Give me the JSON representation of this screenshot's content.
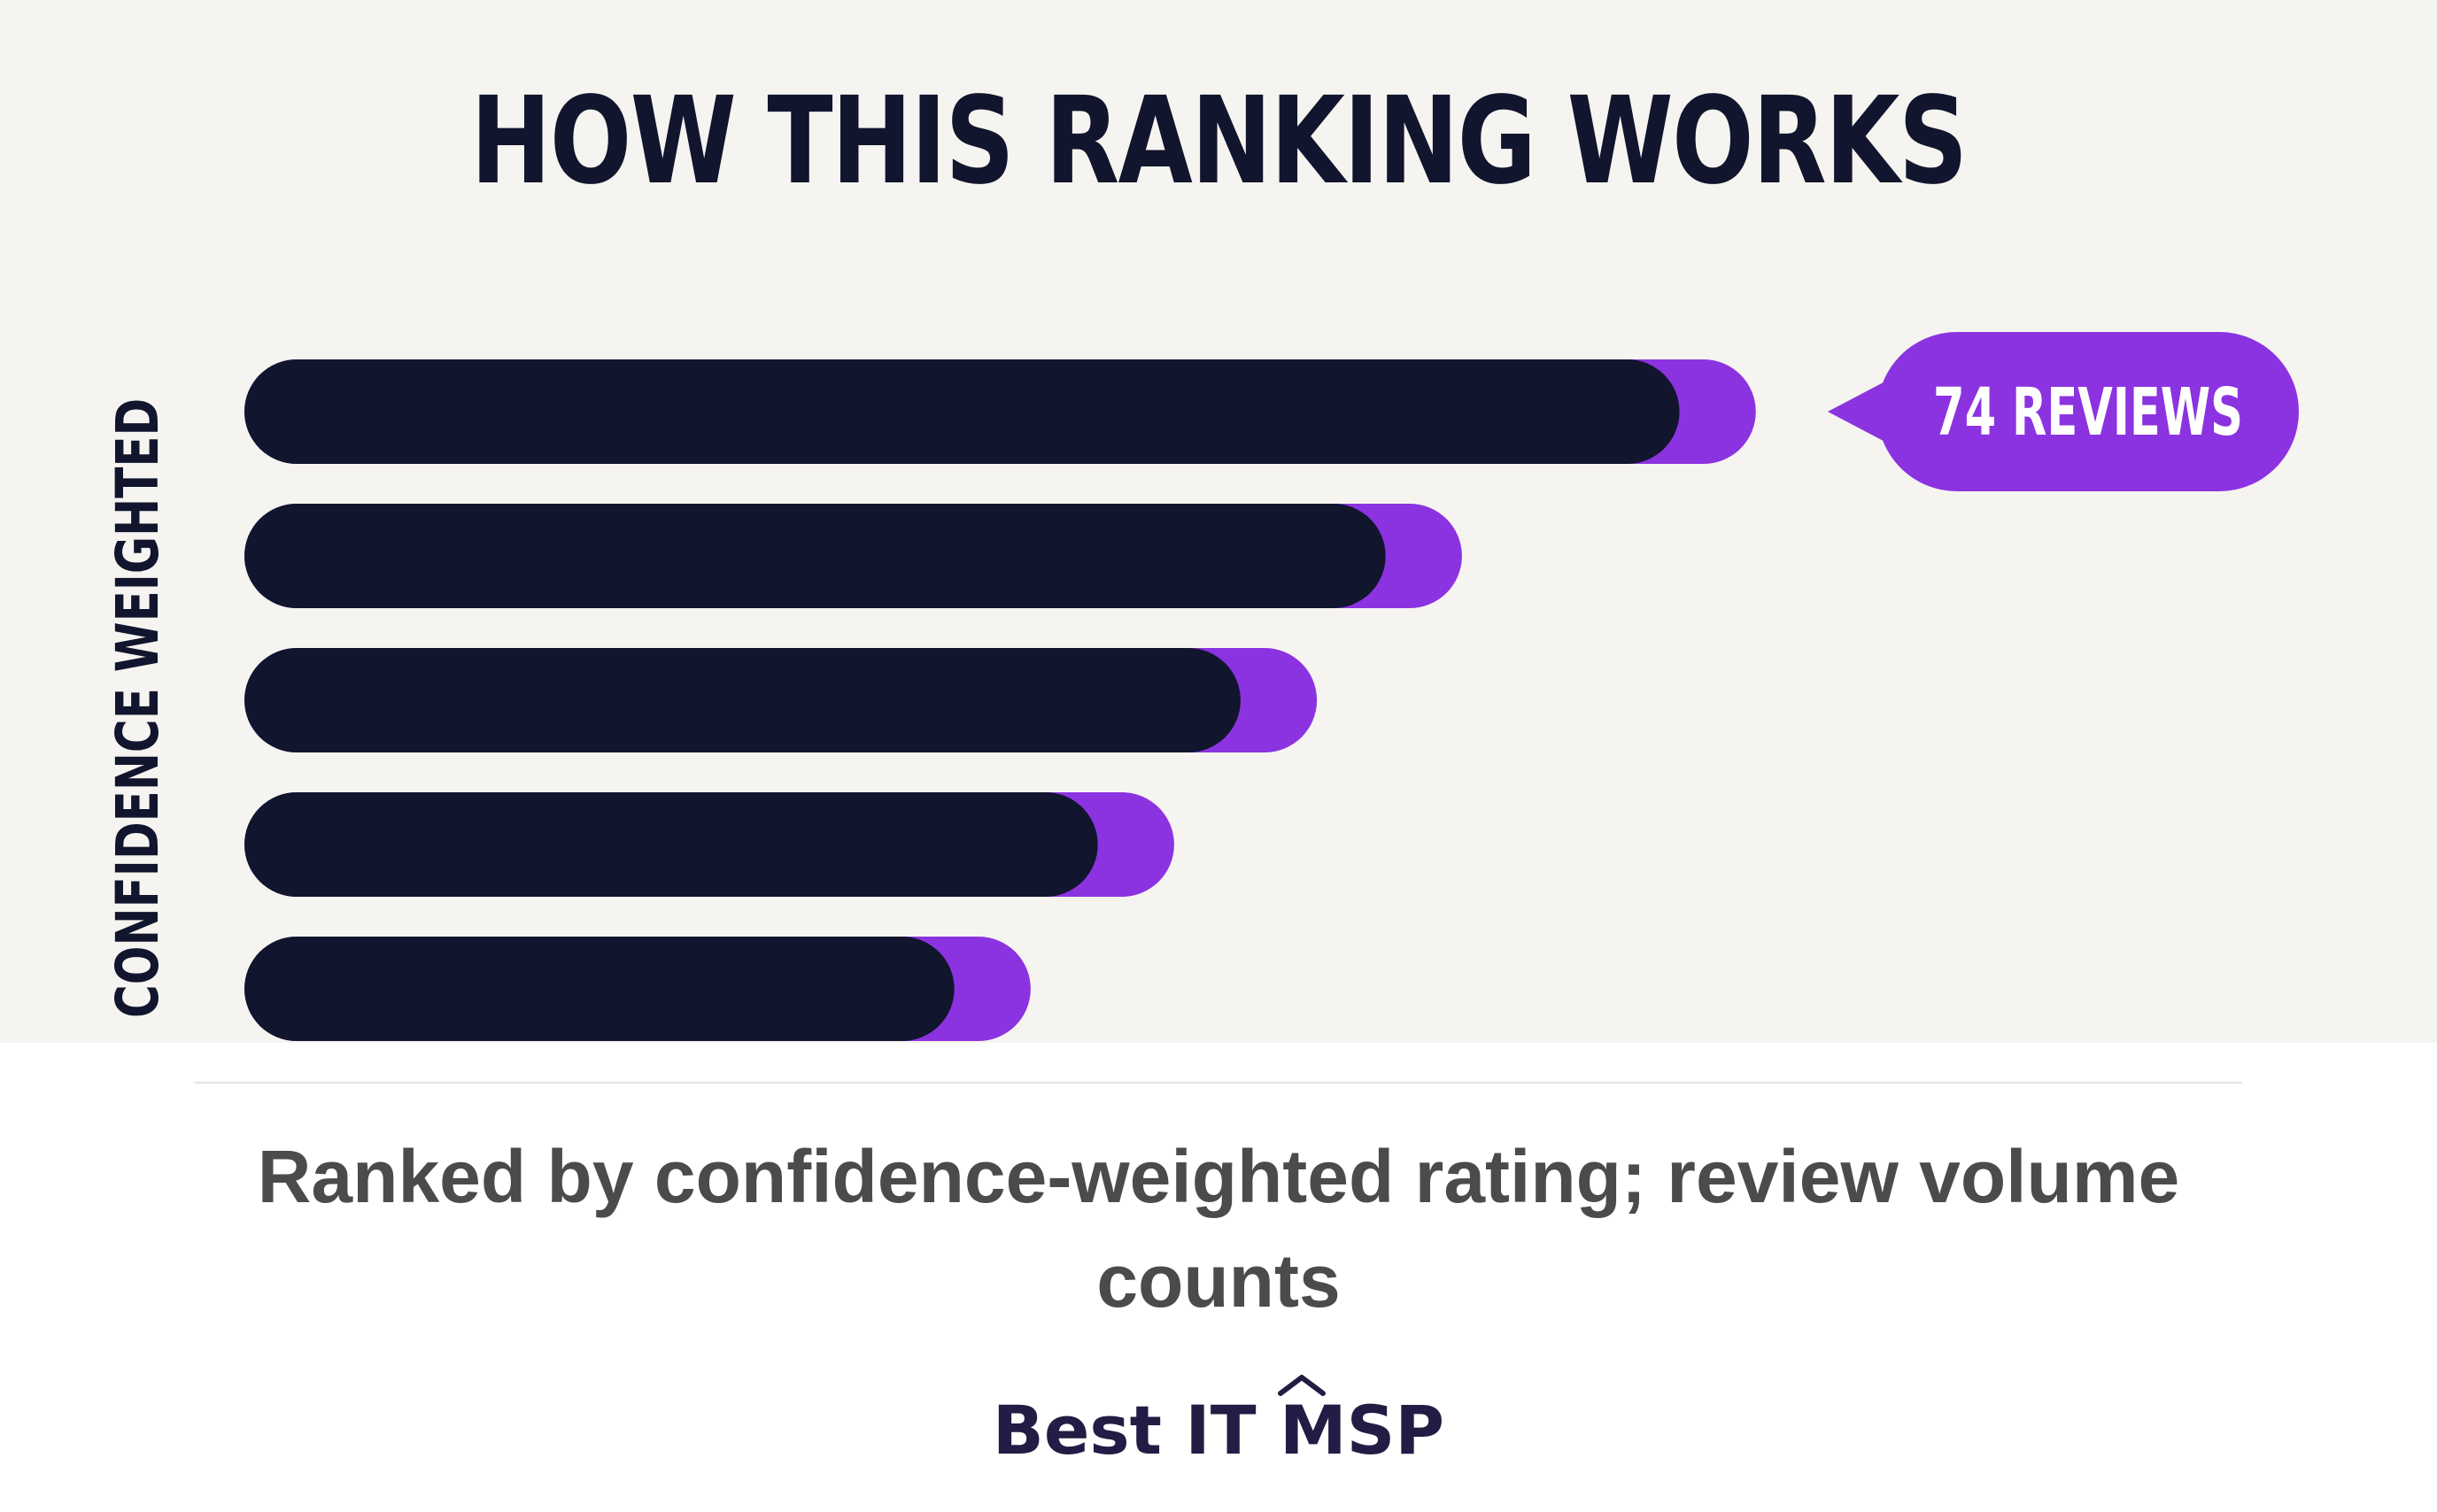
{
  "title": "HOW THIS RANKING WORKS",
  "colors": {
    "background": "#f6f4f0",
    "bar_main": "#11152d",
    "bar_accent": "#8b33e0",
    "caption": "#4b4b4b",
    "brand": "#241c44"
  },
  "chart_data": {
    "type": "bar",
    "orientation": "horizontal",
    "ylabel": "CONFIDENCE WEIGHTED",
    "xlabel": "",
    "bars": [
      {
        "main": 1880,
        "total": 1980
      },
      {
        "main": 1495,
        "total": 1595
      },
      {
        "main": 1305,
        "total": 1405
      },
      {
        "main": 1118,
        "total": 1218
      },
      {
        "main": 930,
        "total": 1030
      }
    ],
    "annotation": {
      "bar_index": 0,
      "label": "74 REVIEWS"
    },
    "grid": false,
    "legend": "none"
  },
  "caption": "Ranked by confidence-weighted rating; review volume counts",
  "brand": "Best IT MSP"
}
